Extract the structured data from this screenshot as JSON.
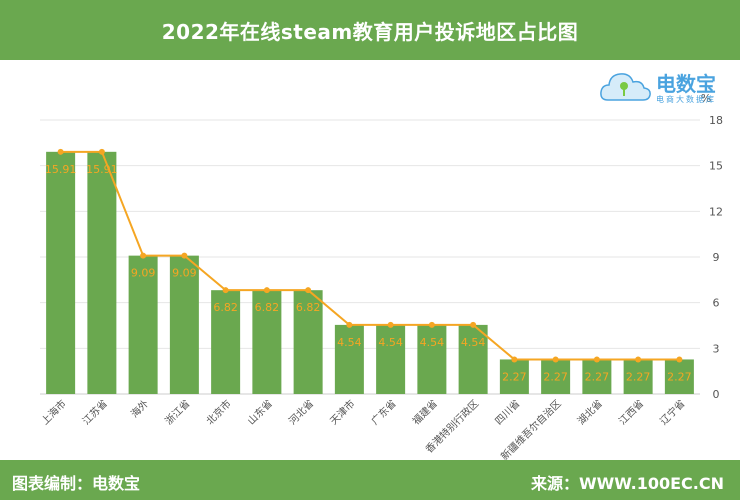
{
  "header": {
    "title": "2022年在线steam教育用户投诉地区占比图"
  },
  "footer": {
    "left": "图表编制：电数宝",
    "right": "来源：WWW.100EC.CN"
  },
  "logo": {
    "brand": "电数宝",
    "sub": "电商大数据库"
  },
  "colors": {
    "accent": "#6aa84f",
    "bar": "#6aa84f",
    "line": "#f5a623",
    "label": "#f5a623"
  },
  "chart_data": {
    "type": "bar",
    "title": "2022年在线steam教育用户投诉地区占比图",
    "ylabel": "%",
    "ylim": [
      0,
      18
    ],
    "yticks": [
      0,
      3,
      6,
      9,
      12,
      15,
      18
    ],
    "grid": true,
    "categories": [
      "上海市",
      "江苏省",
      "海外",
      "浙江省",
      "北京市",
      "山东省",
      "河北省",
      "天津市",
      "广东省",
      "福建省",
      "香港特别行政区",
      "四川省",
      "新疆维吾尔自治区",
      "湖北省",
      "江西省",
      "辽宁省"
    ],
    "series": [
      {
        "type": "bar",
        "values": [
          15.91,
          15.91,
          9.09,
          9.09,
          6.82,
          6.82,
          6.82,
          4.54,
          4.54,
          4.54,
          4.54,
          2.27,
          2.27,
          2.27,
          2.27,
          2.27
        ]
      },
      {
        "type": "line",
        "values": [
          15.91,
          15.91,
          9.09,
          9.09,
          6.82,
          6.82,
          6.82,
          4.54,
          4.54,
          4.54,
          4.54,
          2.27,
          2.27,
          2.27,
          2.27,
          2.27
        ]
      }
    ],
    "data_labels": [
      "15.91",
      "15.91",
      "9.09",
      "9.09",
      "6.82",
      "6.82",
      "6.82",
      "4.54",
      "4.54",
      "4.54",
      "4.54",
      "2.27",
      "2.27",
      "2.27",
      "2.27",
      "2.27"
    ]
  }
}
